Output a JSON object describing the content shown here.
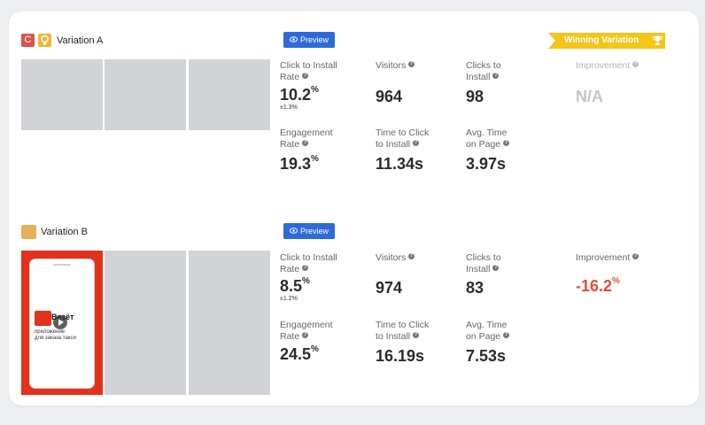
{
  "variations": [
    {
      "badge_letter": "C",
      "title": "Variation A",
      "preview_label": "Preview",
      "winning_label": "Winning Variation",
      "metrics": {
        "ctir_label": "Click to Install Rate",
        "ctir_value": "10.2",
        "ctir_unit": "%",
        "ctir_ci": "±1.3%",
        "visitors_label": "Visitors",
        "visitors_value": "964",
        "clicks_label": "Clicks to Install",
        "clicks_value": "98",
        "improvement_label": "Improvement",
        "improvement_value": "N/A",
        "engagement_label": "Engagement Rate",
        "engagement_value": "19.3",
        "engagement_unit": "%",
        "ttci_label": "Time to Click to Install",
        "ttci_value": "11.34s",
        "avgtime_label": "Avg. Time on Page",
        "avgtime_value": "3.97s"
      }
    },
    {
      "title": "Variation B",
      "preview_label": "Preview",
      "phone": {
        "brand": "Везёт",
        "line1": "приложение",
        "line2": "для заказа такси"
      },
      "metrics": {
        "ctir_label": "Click to Install Rate",
        "ctir_value": "8.5",
        "ctir_unit": "%",
        "ctir_ci": "±1.2%",
        "visitors_label": "Visitors",
        "visitors_value": "974",
        "clicks_label": "Clicks to Install",
        "clicks_value": "83",
        "improvement_label": "Improvement",
        "improvement_value": "-16.2",
        "improvement_unit": "%",
        "engagement_label": "Engagement Rate",
        "engagement_value": "24.5",
        "engagement_unit": "%",
        "ttci_label": "Time to Click to Install",
        "ttci_value": "16.19s",
        "avgtime_label": "Avg. Time on Page",
        "avgtime_value": "7.53s"
      }
    }
  ],
  "colors": {
    "badge_c": "#d9534f",
    "badge_bulb": "#f2b632",
    "swatch_b": "#e4b25c",
    "preview_button": "#2f6bd8",
    "winning_banner": "#f5c518",
    "negative": "#e4502f",
    "placeholder": "#d2d3d6",
    "phone_bg": "#e4311c"
  },
  "icons": [
    "lightbulb-icon",
    "eye-icon",
    "trophy-icon",
    "info-icon",
    "play-icon"
  ]
}
